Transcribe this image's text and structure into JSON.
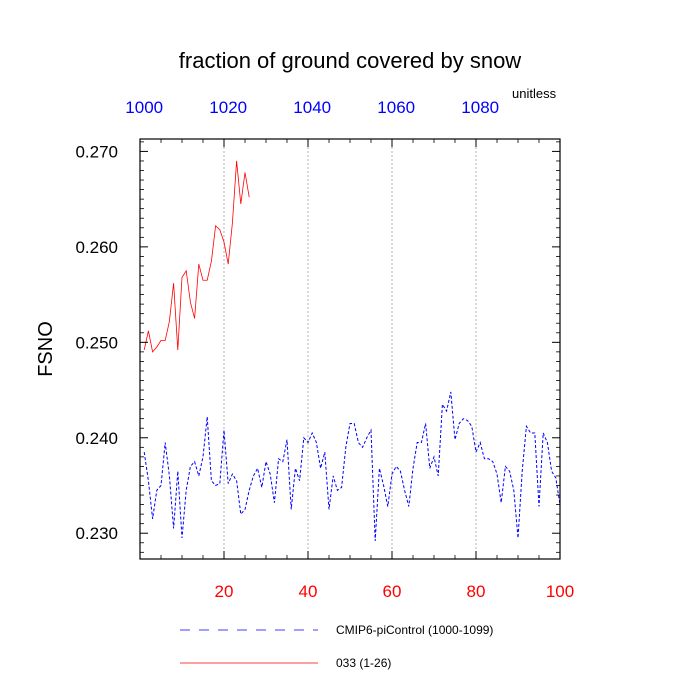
{
  "chart_data": {
    "type": "line",
    "title": "fraction of ground covered by snow",
    "units": "unitless",
    "ylabel": "FSNO",
    "xlabel": "",
    "xlim": [
      0,
      100
    ],
    "ylim": [
      0.2273,
      0.2713
    ],
    "x_ticks": [
      20,
      40,
      60,
      80,
      100
    ],
    "x_grid": [
      20,
      40,
      60,
      80
    ],
    "top_axis": {
      "offset": 999,
      "ticks": [
        1000,
        1020,
        1040,
        1060,
        1080
      ]
    },
    "y_ticks": [
      {
        "value": 0.23,
        "label": "0.230"
      },
      {
        "value": 0.24,
        "label": "0.240"
      },
      {
        "value": 0.25,
        "label": "0.250"
      },
      {
        "value": 0.26,
        "label": "0.260"
      },
      {
        "value": 0.27,
        "label": "0.270"
      }
    ],
    "series": [
      {
        "name": "CMIP6-piControl (1000-1099)",
        "color": "#0000ff",
        "style": "dashed",
        "x": [
          1,
          2,
          3,
          4,
          5,
          6,
          7,
          8,
          9,
          10,
          11,
          12,
          13,
          14,
          15,
          16,
          17,
          18,
          19,
          20,
          21,
          22,
          23,
          24,
          25,
          26,
          27,
          28,
          29,
          30,
          31,
          32,
          33,
          34,
          35,
          36,
          37,
          38,
          39,
          40,
          41,
          42,
          43,
          44,
          45,
          46,
          47,
          48,
          49,
          50,
          51,
          52,
          53,
          54,
          55,
          56,
          57,
          58,
          59,
          60,
          61,
          62,
          63,
          64,
          65,
          66,
          67,
          68,
          69,
          70,
          71,
          72,
          73,
          74,
          75,
          76,
          77,
          78,
          79,
          80,
          81,
          82,
          83,
          84,
          85,
          86,
          87,
          88,
          89,
          90,
          91,
          92,
          93,
          94,
          95,
          96,
          97,
          98,
          99,
          100
        ],
        "values": [
          0.2385,
          0.2355,
          0.2315,
          0.2345,
          0.235,
          0.2395,
          0.236,
          0.2305,
          0.2365,
          0.2295,
          0.2345,
          0.237,
          0.2375,
          0.236,
          0.238,
          0.2422,
          0.2355,
          0.235,
          0.2352,
          0.2408,
          0.2352,
          0.2362,
          0.2355,
          0.232,
          0.2325,
          0.2345,
          0.236,
          0.2368,
          0.2348,
          0.2375,
          0.2362,
          0.2332,
          0.2378,
          0.2375,
          0.2398,
          0.2325,
          0.2368,
          0.2355,
          0.24,
          0.2395,
          0.2405,
          0.2395,
          0.2368,
          0.2385,
          0.2325,
          0.236,
          0.2345,
          0.2348,
          0.239,
          0.2415,
          0.2415,
          0.2395,
          0.239,
          0.24,
          0.2408,
          0.2292,
          0.2368,
          0.235,
          0.2328,
          0.2362,
          0.237,
          0.2365,
          0.2345,
          0.2328,
          0.2368,
          0.2395,
          0.2395,
          0.2415,
          0.2368,
          0.238,
          0.236,
          0.2435,
          0.2428,
          0.2448,
          0.2398,
          0.2415,
          0.242,
          0.2418,
          0.2412,
          0.2385,
          0.2395,
          0.2378,
          0.2378,
          0.2375,
          0.2362,
          0.2332,
          0.237,
          0.2365,
          0.2345,
          0.2295,
          0.2365,
          0.2412,
          0.2405,
          0.2405,
          0.2328,
          0.2405,
          0.2395,
          0.2365,
          0.2358,
          0.233
        ]
      },
      {
        "name": "033 (1-26)",
        "color": "#ff0000",
        "style": "solid",
        "x": [
          1,
          2,
          3,
          4,
          5,
          6,
          7,
          8,
          9,
          10,
          11,
          12,
          13,
          14,
          15,
          16,
          17,
          18,
          19,
          20,
          21,
          22,
          23,
          24,
          25,
          26
        ],
        "values": [
          0.2492,
          0.2512,
          0.249,
          0.2495,
          0.2502,
          0.2502,
          0.2522,
          0.2562,
          0.2492,
          0.2568,
          0.2575,
          0.2542,
          0.2525,
          0.2582,
          0.2565,
          0.2565,
          0.2585,
          0.2622,
          0.2618,
          0.2605,
          0.2582,
          0.2625,
          0.269,
          0.2645,
          0.2678,
          0.2652
        ]
      }
    ],
    "legend": {
      "position": "bottom"
    },
    "grid": "vertical-dotted"
  }
}
